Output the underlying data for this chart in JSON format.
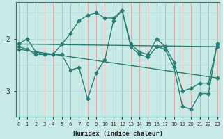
{
  "xlabel": "Humidex (Indice chaleur)",
  "bg_color": "#c8eae6",
  "line_color": "#2a7d72",
  "grid_v_color": "#e8a0a0",
  "grid_h_color": "#b8d8d4",
  "ylim": [
    -3.5,
    -1.3
  ],
  "xlim": [
    -0.3,
    23.3
  ],
  "yticks": [
    -3.0,
    -2.0
  ],
  "ytick_labels": [
    "-3",
    "-2"
  ],
  "x": [
    0,
    1,
    2,
    3,
    4,
    5,
    6,
    7,
    8,
    9,
    10,
    11,
    12,
    13,
    14,
    15,
    16,
    17,
    18,
    19,
    20,
    21,
    22,
    23
  ],
  "line1_y": [
    -2.1,
    -2.0,
    -2.25,
    -2.3,
    -2.3,
    -2.1,
    -1.9,
    -1.65,
    -1.55,
    -1.5,
    -1.6,
    -1.6,
    -1.45,
    -2.1,
    -2.25,
    -2.3,
    -2.0,
    -2.15,
    -2.45,
    -3.0,
    -2.95,
    -2.85,
    -2.85,
    -2.1
  ],
  "line2_y": [
    -2.15,
    -2.2,
    -2.3,
    -2.3,
    -2.3,
    -2.3,
    -2.6,
    -2.55,
    -3.15,
    -2.65,
    -2.4,
    -1.65,
    -1.45,
    -2.15,
    -2.3,
    -2.35,
    -2.15,
    -2.2,
    -2.55,
    -3.3,
    -3.35,
    -3.05,
    -3.05,
    -2.1
  ],
  "line3_x": [
    0,
    23
  ],
  "line3_y": [
    -2.1,
    -2.15
  ],
  "line4_x": [
    0,
    23
  ],
  "line4_y": [
    -2.2,
    -2.75
  ]
}
